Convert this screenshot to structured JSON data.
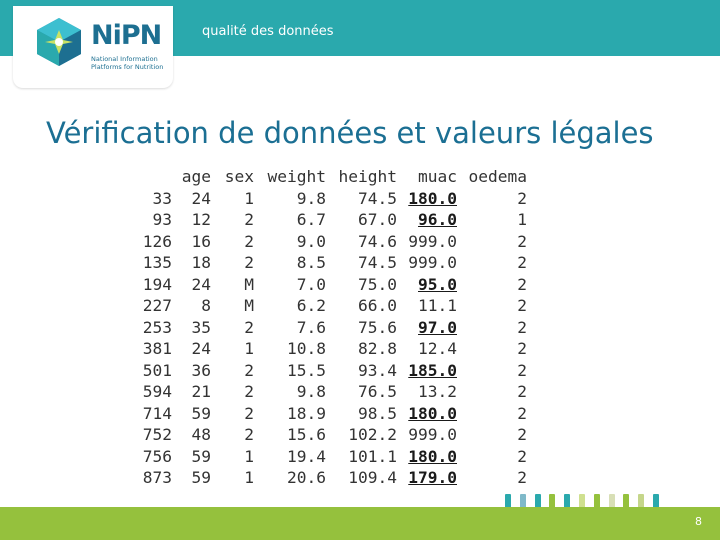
{
  "header": {
    "subtitle": "qualité des données",
    "logo": {
      "name": "NiPN",
      "sub_line1": "National Information",
      "sub_line2": "Platforms for Nutrition"
    },
    "bar_color": "#2aa9ad"
  },
  "slide": {
    "title": "Vérification de données et valeurs légales",
    "page_number": "8"
  },
  "table": {
    "columns": [
      "",
      "age",
      "sex",
      "weight",
      "height",
      "muac",
      "oedema"
    ],
    "rows": [
      {
        "id": "33",
        "age": "24",
        "sex": "1",
        "weight": "9.8",
        "height": "74.5",
        "muac": "180.0",
        "muac_bold": true,
        "oedema": "2"
      },
      {
        "id": "93",
        "age": "12",
        "sex": "2",
        "weight": "6.7",
        "height": "67.0",
        "muac": "96.0",
        "muac_bold": true,
        "oedema": "1"
      },
      {
        "id": "126",
        "age": "16",
        "sex": "2",
        "weight": "9.0",
        "height": "74.6",
        "muac": "999.0",
        "muac_bold": false,
        "oedema": "2"
      },
      {
        "id": "135",
        "age": "18",
        "sex": "2",
        "weight": "8.5",
        "height": "74.5",
        "muac": "999.0",
        "muac_bold": false,
        "oedema": "2"
      },
      {
        "id": "194",
        "age": "24",
        "sex": "M",
        "weight": "7.0",
        "height": "75.0",
        "muac": "95.0",
        "muac_bold": true,
        "oedema": "2"
      },
      {
        "id": "227",
        "age": "8",
        "sex": "M",
        "weight": "6.2",
        "height": "66.0",
        "muac": "11.1",
        "muac_bold": false,
        "oedema": "2"
      },
      {
        "id": "253",
        "age": "35",
        "sex": "2",
        "weight": "7.6",
        "height": "75.6",
        "muac": "97.0",
        "muac_bold": true,
        "oedema": "2"
      },
      {
        "id": "381",
        "age": "24",
        "sex": "1",
        "weight": "10.8",
        "height": "82.8",
        "muac": "12.4",
        "muac_bold": false,
        "oedema": "2"
      },
      {
        "id": "501",
        "age": "36",
        "sex": "2",
        "weight": "15.5",
        "height": "93.4",
        "muac": "185.0",
        "muac_bold": true,
        "oedema": "2"
      },
      {
        "id": "594",
        "age": "21",
        "sex": "2",
        "weight": "9.8",
        "height": "76.5",
        "muac": "13.2",
        "muac_bold": false,
        "oedema": "2"
      },
      {
        "id": "714",
        "age": "59",
        "sex": "2",
        "weight": "18.9",
        "height": "98.5",
        "muac": "180.0",
        "muac_bold": true,
        "oedema": "2"
      },
      {
        "id": "752",
        "age": "48",
        "sex": "2",
        "weight": "15.6",
        "height": "102.2",
        "muac": "999.0",
        "muac_bold": false,
        "oedema": "2"
      },
      {
        "id": "756",
        "age": "59",
        "sex": "1",
        "weight": "19.4",
        "height": "101.1",
        "muac": "180.0",
        "muac_bold": true,
        "oedema": "2"
      },
      {
        "id": "873",
        "age": "59",
        "sex": "1",
        "weight": "20.6",
        "height": "109.4",
        "muac": "179.0",
        "muac_bold": true,
        "oedema": "2"
      }
    ]
  },
  "decor": {
    "stripe_colors": [
      "#2aa9ad",
      "#7fb9c9",
      "#2aa9ad",
      "#95c13d",
      "#2aa9ad",
      "#cfe08f",
      "#95c13d",
      "#d8dfb6",
      "#95c13d",
      "#c5d68a",
      "#2aa9ad"
    ],
    "bottom_bar_color": "#95c13d"
  }
}
